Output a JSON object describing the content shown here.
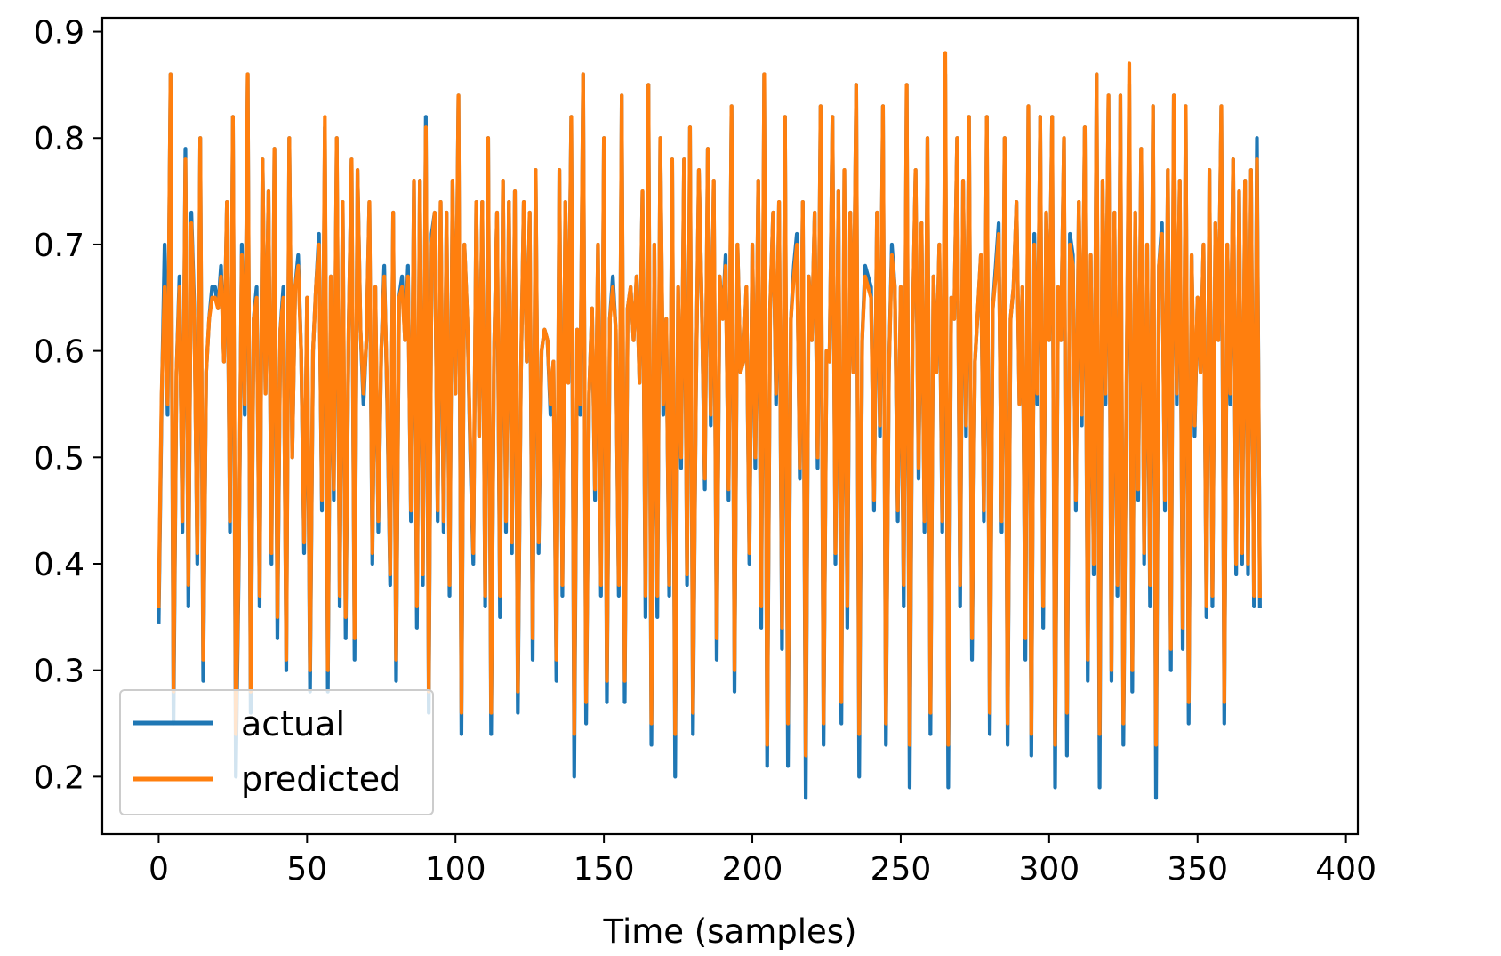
{
  "chart_data": {
    "type": "line",
    "title": "",
    "xlabel": "Time (samples)",
    "ylabel": "",
    "xlim": [
      -19,
      404
    ],
    "ylim": [
      0.146,
      0.913
    ],
    "xticks": [
      0,
      50,
      100,
      150,
      200,
      250,
      300,
      350,
      400
    ],
    "xtick_labels": [
      "0",
      "50",
      "100",
      "150",
      "200",
      "250",
      "300",
      "350",
      "400"
    ],
    "yticks": [
      0.2,
      0.3,
      0.4,
      0.5,
      0.6,
      0.7,
      0.8,
      0.9
    ],
    "ytick_labels": [
      "0.2",
      "0.3",
      "0.4",
      "0.5",
      "0.6",
      "0.7",
      "0.8",
      "0.9"
    ],
    "grid": false,
    "legend": "lower-left",
    "n_points": 386,
    "series": [
      {
        "name": "actual",
        "color": "#1f77b4",
        "x_start": 0,
        "x_step": 1,
        "values": [
          0.345,
          0.55,
          0.7,
          0.54,
          0.86,
          0.25,
          0.58,
          0.67,
          0.43,
          0.79,
          0.36,
          0.73,
          0.64,
          0.4,
          0.8,
          0.29,
          0.58,
          0.63,
          0.66,
          0.66,
          0.64,
          0.68,
          0.59,
          0.74,
          0.43,
          0.82,
          0.2,
          0.4,
          0.7,
          0.54,
          0.86,
          0.26,
          0.63,
          0.66,
          0.36,
          0.78,
          0.56,
          0.75,
          0.4,
          0.79,
          0.33,
          0.62,
          0.66,
          0.3,
          0.8,
          0.5,
          0.66,
          0.69,
          0.6,
          0.41,
          0.65,
          0.28,
          0.6,
          0.66,
          0.71,
          0.45,
          0.81,
          0.28,
          0.67,
          0.46,
          0.8,
          0.36,
          0.74,
          0.33,
          0.62,
          0.78,
          0.31,
          0.77,
          0.62,
          0.55,
          0.61,
          0.74,
          0.4,
          0.66,
          0.43,
          0.6,
          0.68,
          0.55,
          0.38,
          0.73,
          0.29,
          0.65,
          0.67,
          0.61,
          0.68,
          0.44,
          0.76,
          0.34,
          0.76,
          0.38,
          0.82,
          0.26,
          0.71,
          0.73,
          0.44,
          0.74,
          0.43,
          0.73,
          0.37,
          0.76,
          0.56,
          0.84,
          0.24,
          0.7,
          0.63,
          0.5,
          0.4,
          0.74,
          0.52,
          0.74,
          0.36,
          0.8,
          0.24,
          0.6,
          0.73,
          0.35,
          0.76,
          0.43,
          0.74,
          0.41,
          0.75,
          0.26,
          0.57,
          0.74,
          0.59,
          0.73,
          0.31,
          0.77,
          0.41,
          0.6,
          0.62,
          0.61,
          0.54,
          0.59,
          0.29,
          0.77,
          0.37,
          0.74,
          0.57,
          0.82,
          0.2,
          0.62,
          0.54,
          0.86,
          0.25,
          0.56,
          0.64,
          0.46,
          0.7,
          0.37,
          0.8,
          0.27,
          0.63,
          0.67,
          0.62,
          0.37,
          0.84,
          0.27,
          0.64,
          0.66,
          0.61,
          0.67,
          0.57,
          0.75,
          0.35,
          0.85,
          0.23,
          0.7,
          0.35,
          0.8,
          0.54,
          0.63,
          0.37,
          0.78,
          0.2,
          0.66,
          0.49,
          0.78,
          0.38,
          0.81,
          0.24,
          0.56,
          0.77,
          0.64,
          0.47,
          0.79,
          0.53,
          0.76,
          0.31,
          0.67,
          0.63,
          0.69,
          0.46,
          0.83,
          0.28,
          0.7,
          0.58,
          0.59,
          0.66,
          0.4,
          0.7,
          0.49,
          0.76,
          0.34,
          0.86,
          0.21,
          0.64,
          0.73,
          0.55,
          0.74,
          0.32,
          0.82,
          0.21,
          0.63,
          0.68,
          0.71,
          0.48,
          0.74,
          0.18,
          0.67,
          0.61,
          0.73,
          0.49,
          0.83,
          0.23,
          0.6,
          0.59,
          0.82,
          0.4,
          0.75,
          0.25,
          0.77,
          0.34,
          0.73,
          0.58,
          0.85,
          0.2,
          0.61,
          0.68,
          0.67,
          0.66,
          0.45,
          0.73,
          0.52,
          0.83,
          0.23,
          0.58,
          0.7,
          0.66,
          0.44,
          0.66,
          0.36,
          0.85,
          0.19,
          0.62,
          0.77,
          0.48,
          0.72,
          0.43,
          0.8,
          0.24,
          0.67,
          0.58,
          0.7,
          0.43,
          0.86,
          0.19,
          0.65,
          0.63,
          0.8,
          0.36,
          0.76,
          0.52,
          0.82,
          0.31,
          0.59,
          0.64,
          0.69,
          0.44,
          0.82,
          0.24,
          0.64,
          0.68,
          0.72,
          0.43,
          0.8,
          0.23,
          0.63,
          0.66,
          0.74,
          0.55,
          0.66,
          0.31,
          0.83,
          0.22,
          0.71,
          0.55,
          0.82,
          0.34,
          0.73,
          0.61,
          0.82,
          0.19,
          0.66,
          0.61,
          0.8,
          0.22,
          0.71,
          0.69,
          0.45,
          0.74,
          0.53,
          0.81,
          0.29,
          0.69,
          0.39,
          0.86,
          0.19,
          0.76,
          0.55,
          0.84,
          0.29,
          0.73,
          0.37,
          0.84,
          0.23,
          0.54,
          0.85,
          0.28,
          0.73,
          0.46,
          0.79,
          0.4,
          0.7,
          0.36,
          0.83,
          0.18,
          0.68,
          0.72,
          0.45,
          0.77,
          0.3,
          0.84,
          0.55,
          0.76,
          0.32,
          0.83,
          0.25,
          0.69,
          0.52,
          0.65,
          0.58,
          0.7,
          0.35,
          0.77,
          0.36,
          0.72,
          0.61,
          0.83,
          0.25,
          0.7,
          0.55,
          0.78,
          0.39,
          0.75,
          0.4,
          0.76,
          0.39,
          0.77,
          0.36,
          0.8,
          0.36
        ]
      },
      {
        "name": "predicted",
        "color": "#ff7f0e",
        "x_start": 0,
        "x_step": 1,
        "values": [
          0.36,
          0.56,
          0.66,
          0.55,
          0.86,
          0.28,
          0.58,
          0.66,
          0.44,
          0.78,
          0.38,
          0.72,
          0.63,
          0.41,
          0.8,
          0.31,
          0.58,
          0.63,
          0.65,
          0.65,
          0.64,
          0.67,
          0.59,
          0.74,
          0.44,
          0.82,
          0.24,
          0.41,
          0.69,
          0.55,
          0.86,
          0.28,
          0.63,
          0.65,
          0.37,
          0.78,
          0.56,
          0.75,
          0.41,
          0.79,
          0.35,
          0.62,
          0.65,
          0.31,
          0.8,
          0.5,
          0.66,
          0.68,
          0.6,
          0.42,
          0.65,
          0.3,
          0.6,
          0.66,
          0.7,
          0.46,
          0.82,
          0.3,
          0.67,
          0.47,
          0.8,
          0.37,
          0.74,
          0.35,
          0.62,
          0.78,
          0.33,
          0.77,
          0.62,
          0.56,
          0.61,
          0.74,
          0.41,
          0.66,
          0.44,
          0.6,
          0.67,
          0.56,
          0.39,
          0.73,
          0.31,
          0.65,
          0.66,
          0.61,
          0.67,
          0.45,
          0.76,
          0.36,
          0.76,
          0.39,
          0.81,
          0.28,
          0.7,
          0.73,
          0.45,
          0.74,
          0.44,
          0.73,
          0.38,
          0.76,
          0.56,
          0.84,
          0.26,
          0.7,
          0.63,
          0.51,
          0.41,
          0.74,
          0.52,
          0.74,
          0.37,
          0.8,
          0.26,
          0.6,
          0.73,
          0.37,
          0.76,
          0.44,
          0.74,
          0.42,
          0.75,
          0.28,
          0.57,
          0.74,
          0.59,
          0.73,
          0.33,
          0.77,
          0.42,
          0.6,
          0.62,
          0.61,
          0.55,
          0.59,
          0.31,
          0.77,
          0.38,
          0.74,
          0.57,
          0.82,
          0.24,
          0.62,
          0.55,
          0.86,
          0.27,
          0.56,
          0.64,
          0.47,
          0.7,
          0.38,
          0.8,
          0.29,
          0.63,
          0.66,
          0.62,
          0.38,
          0.84,
          0.29,
          0.64,
          0.66,
          0.61,
          0.67,
          0.57,
          0.75,
          0.37,
          0.85,
          0.25,
          0.7,
          0.37,
          0.8,
          0.55,
          0.63,
          0.38,
          0.78,
          0.24,
          0.66,
          0.5,
          0.78,
          0.39,
          0.81,
          0.26,
          0.56,
          0.77,
          0.64,
          0.48,
          0.79,
          0.54,
          0.76,
          0.33,
          0.67,
          0.63,
          0.68,
          0.47,
          0.83,
          0.3,
          0.7,
          0.58,
          0.59,
          0.66,
          0.41,
          0.7,
          0.5,
          0.76,
          0.36,
          0.86,
          0.23,
          0.64,
          0.73,
          0.56,
          0.74,
          0.34,
          0.82,
          0.25,
          0.63,
          0.67,
          0.7,
          0.49,
          0.74,
          0.22,
          0.67,
          0.61,
          0.73,
          0.5,
          0.83,
          0.25,
          0.6,
          0.59,
          0.82,
          0.41,
          0.75,
          0.27,
          0.77,
          0.36,
          0.73,
          0.58,
          0.85,
          0.24,
          0.61,
          0.67,
          0.66,
          0.65,
          0.46,
          0.73,
          0.53,
          0.83,
          0.25,
          0.58,
          0.69,
          0.66,
          0.45,
          0.66,
          0.38,
          0.85,
          0.23,
          0.62,
          0.77,
          0.49,
          0.72,
          0.44,
          0.8,
          0.26,
          0.67,
          0.58,
          0.7,
          0.44,
          0.88,
          0.23,
          0.65,
          0.63,
          0.8,
          0.38,
          0.76,
          0.53,
          0.82,
          0.33,
          0.59,
          0.64,
          0.69,
          0.45,
          0.82,
          0.26,
          0.64,
          0.67,
          0.71,
          0.44,
          0.8,
          0.25,
          0.63,
          0.66,
          0.74,
          0.55,
          0.66,
          0.33,
          0.83,
          0.24,
          0.7,
          0.56,
          0.82,
          0.36,
          0.73,
          0.61,
          0.82,
          0.23,
          0.66,
          0.61,
          0.8,
          0.26,
          0.7,
          0.68,
          0.46,
          0.74,
          0.54,
          0.81,
          0.31,
          0.69,
          0.4,
          0.86,
          0.24,
          0.76,
          0.56,
          0.84,
          0.3,
          0.73,
          0.38,
          0.84,
          0.25,
          0.55,
          0.87,
          0.3,
          0.73,
          0.47,
          0.79,
          0.41,
          0.7,
          0.38,
          0.83,
          0.23,
          0.68,
          0.71,
          0.46,
          0.77,
          0.32,
          0.84,
          0.56,
          0.76,
          0.34,
          0.83,
          0.27,
          0.69,
          0.53,
          0.65,
          0.58,
          0.7,
          0.36,
          0.77,
          0.37,
          0.72,
          0.61,
          0.83,
          0.27,
          0.7,
          0.56,
          0.78,
          0.4,
          0.75,
          0.41,
          0.76,
          0.4,
          0.77,
          0.37,
          0.78,
          0.37
        ]
      }
    ]
  }
}
